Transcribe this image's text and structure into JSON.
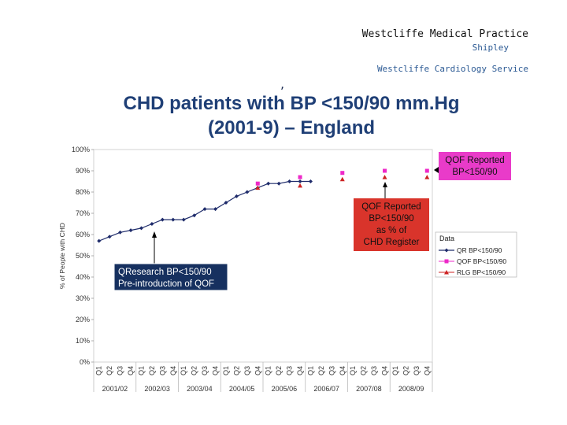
{
  "header": {
    "practice": "Westcliffe Medical Practice",
    "location": "Shipley",
    "service": "Westcliffe Cardiology Service"
  },
  "title_mark": ",",
  "title_line1": "CHD patients with BP <150/90 mm.Hg",
  "title_line2": "(2001-9) – England",
  "chart_data": {
    "type": "line",
    "ylabel": "% of People with CHD",
    "ylim": [
      0,
      100
    ],
    "ytick_labels": [
      "0%",
      "10%",
      "20%",
      "30%",
      "40%",
      "50%",
      "60%",
      "70%",
      "80%",
      "90%",
      "100%"
    ],
    "quarters": [
      "Q1",
      "Q2",
      "Q3",
      "Q4",
      "Q1",
      "Q2",
      "Q3",
      "Q4",
      "Q1",
      "Q2",
      "Q3",
      "Q4",
      "Q1",
      "Q2",
      "Q3",
      "Q4",
      "Q1",
      "Q2",
      "Q3",
      "Q4",
      "Q1",
      "Q2",
      "Q3",
      "Q4",
      "Q1",
      "Q2",
      "Q3",
      "Q4",
      "Q1",
      "Q2",
      "Q3",
      "Q4"
    ],
    "years": [
      "2001/02",
      "2002/03",
      "2003/04",
      "2004/05",
      "2005/06",
      "2006/07",
      "2007/08",
      "2008/09"
    ],
    "legend_title": "Data",
    "series": [
      {
        "name": "QR BP<150/90",
        "color": "#1f2c6b",
        "marker": "diamond",
        "values": [
          57,
          59,
          61,
          62,
          63,
          65,
          67,
          67,
          67,
          69,
          72,
          72,
          75,
          78,
          80,
          82,
          84,
          84,
          85,
          85,
          85,
          null,
          null,
          null,
          null,
          null,
          null,
          null,
          null,
          null,
          null,
          null
        ]
      },
      {
        "name": "QOF BP<150/90",
        "color": "#ee28c8",
        "marker": "square",
        "values": [
          null,
          null,
          null,
          null,
          null,
          null,
          null,
          null,
          null,
          null,
          null,
          null,
          null,
          null,
          null,
          84,
          null,
          null,
          null,
          87,
          null,
          null,
          null,
          89,
          null,
          null,
          null,
          90,
          null,
          null,
          null,
          90
        ]
      },
      {
        "name": "RLG BP<150/90",
        "color": "#cc2222",
        "marker": "triangle",
        "values": [
          null,
          null,
          null,
          null,
          null,
          null,
          null,
          null,
          null,
          null,
          null,
          null,
          null,
          null,
          null,
          82,
          null,
          null,
          null,
          83,
          null,
          null,
          null,
          86,
          null,
          null,
          null,
          87,
          null,
          null,
          null,
          87
        ]
      }
    ],
    "annotations": {
      "qresearch": [
        "QResearch BP<150/90",
        "Pre-introduction of QOF"
      ],
      "qof_register": [
        "QOF Reported",
        "BP<150/90",
        "as % of",
        "CHD Register"
      ],
      "qof_reported": [
        "QOF Reported",
        "BP<150/90"
      ]
    }
  }
}
